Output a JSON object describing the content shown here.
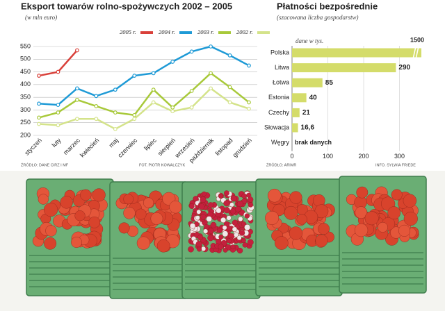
{
  "chart_data": [
    {
      "type": "line",
      "title": "Eksport towarów rolno-spożywczych 2002 – 2005",
      "subtitle": "(w mln euro)",
      "categories": [
        "styczeń",
        "luty",
        "marzec",
        "kwiecień",
        "maj",
        "czerwiec",
        "lipiec",
        "sierpień",
        "wrzesień",
        "październik",
        "listopad",
        "grudzień"
      ],
      "series": [
        {
          "name": "2005 r.",
          "color": "#d9403a",
          "values": [
            435,
            450,
            535,
            null,
            null,
            null,
            null,
            null,
            null,
            null,
            null,
            null
          ]
        },
        {
          "name": "2004 r.",
          "color": "#1e9ad6",
          "values": [
            325,
            320,
            385,
            355,
            380,
            435,
            445,
            490,
            530,
            550,
            515,
            475
          ]
        },
        {
          "name": "2003 r.",
          "color": "#a8c93a",
          "values": [
            270,
            290,
            340,
            315,
            290,
            280,
            380,
            310,
            375,
            445,
            390,
            330
          ]
        },
        {
          "name": "2002 r.",
          "color": "#d4e38a",
          "values": [
            245,
            240,
            265,
            265,
            225,
            265,
            330,
            295,
            310,
            385,
            330,
            305
          ]
        }
      ],
      "ylim": [
        200,
        550
      ],
      "yticks": [
        200,
        250,
        300,
        350,
        400,
        450,
        500,
        550
      ],
      "grid": true,
      "source": "ŹRÓDŁO: DANE CIRZ I MF",
      "credit": "FOT. PIOTR KOWALCZYK"
    },
    {
      "type": "hbar",
      "title": "Płatności bezpośrednie",
      "subtitle": "(szacowana liczba gospodarstw)",
      "note": "dane w tys.",
      "categories": [
        "Polska",
        "Litwa",
        "Łotwa",
        "Estonia",
        "Czechy",
        "Słowacja",
        "Węgry"
      ],
      "values": [
        1500,
        290,
        85,
        40,
        21,
        16.6,
        null
      ],
      "value_labels": [
        "1500",
        "290",
        "85",
        "40",
        "21",
        "16,6",
        "brak danych"
      ],
      "color": "#d4dc6a",
      "xlim": [
        0,
        330
      ],
      "xticks": [
        0,
        100,
        200,
        300
      ],
      "grid": true,
      "source": "ŹRÓDŁO: ARIMR",
      "credit": "INFO. SYLWIA FRIEDE"
    }
  ]
}
